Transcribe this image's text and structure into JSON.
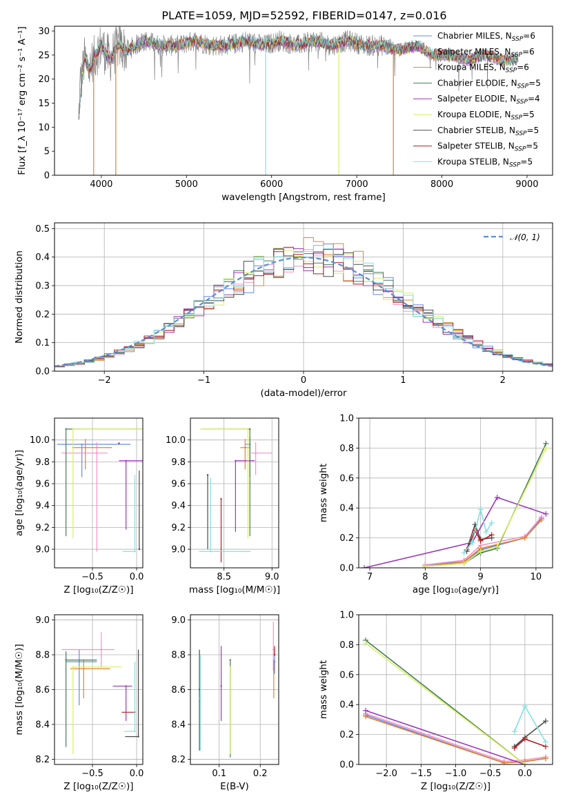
{
  "figure": {
    "title": "PLATE=1059, MJD=52592, FIBERID=0147, z=0.016"
  },
  "series": [
    {
      "name": "Chabrier MILES",
      "nssp": "6",
      "color": "#6488ea"
    },
    {
      "name": "Salpeter MILES",
      "nssp": "6",
      "color": "#f58fc8"
    },
    {
      "name": "Kroupa MILES",
      "nssp": "6",
      "color": "#e0822a"
    },
    {
      "name": "Chabrier ELODIE",
      "nssp": "5",
      "color": "#457a55"
    },
    {
      "name": "Salpeter ELODIE",
      "nssp": "4",
      "color": "#9c34b8"
    },
    {
      "name": "Kroupa ELODIE",
      "nssp": "5",
      "color": "#d6f05a"
    },
    {
      "name": "Chabrier STELIB",
      "nssp": "5",
      "color": "#4a4a4a"
    },
    {
      "name": "Salpeter STELIB",
      "nssp": "5",
      "color": "#b01f24"
    },
    {
      "name": "Kroupa STELIB",
      "nssp": "5",
      "color": "#82e0e0"
    }
  ],
  "chart_data": [
    {
      "id": "spectrum",
      "type": "line",
      "xlabel": "wavelength [Angstrom, rest frame]",
      "ylabel_tex": "Flux [f_λ 10⁻¹⁷ erg cm⁻² s⁻¹ A⁻¹]",
      "xlim": [
        3450,
        9300
      ],
      "ylim": [
        0,
        31
      ],
      "xticks": [
        4000,
        5000,
        6000,
        7000,
        8000,
        9000
      ],
      "yticks": [
        0,
        5,
        10,
        15,
        20,
        25,
        30
      ],
      "data_color": "#808080",
      "data_sample": {
        "x": [
          3730,
          3800,
          3870,
          3930,
          4000,
          4100,
          4200,
          4300,
          4400,
          4500,
          4700,
          4900,
          5100,
          5300,
          5500,
          5700,
          5900,
          6100,
          6300,
          6500,
          6700,
          6900,
          7100,
          7300,
          7500,
          7700,
          7900,
          8100,
          8300,
          8500,
          8700,
          8900
        ],
        "y": [
          15,
          24,
          22,
          25,
          27,
          24,
          27,
          26,
          27,
          28,
          27,
          27,
          28,
          27,
          27,
          28,
          27,
          28,
          27,
          28,
          27,
          28,
          27,
          27,
          26,
          27,
          25,
          25,
          24,
          25,
          24,
          24
        ]
      },
      "model_dips": [
        {
          "series": "Kroupa MILES",
          "x": 3910
        },
        {
          "series": "Kroupa MILES",
          "x": 4170
        },
        {
          "series": "Kroupa STELIB",
          "x": 5930
        },
        {
          "series": "Kroupa ELODIE",
          "x": 6790
        },
        {
          "series": "Kroupa MILES",
          "x": 7430
        }
      ],
      "legend": "top-right"
    },
    {
      "id": "residuals",
      "type": "step-histogram",
      "xlabel": "(data-model)/error",
      "ylabel": "Normed distribution",
      "xlim": [
        -2.5,
        2.5
      ],
      "ylim": [
        0,
        0.52
      ],
      "xticks": [
        -2,
        -1,
        0,
        1,
        2
      ],
      "yticks": [
        0.0,
        0.1,
        0.2,
        0.3,
        0.4,
        0.5
      ],
      "normal_label": "𝒩(0, 1)",
      "normal_color": "#5b8ed6",
      "bin_width": 0.1,
      "legend": "top-right"
    },
    {
      "id": "age-vs-Z",
      "type": "errorbar",
      "xlabel": "Z [log₁₀(Z/Z☉)]",
      "ylabel": "age [log₁₀(age/yr)]",
      "xlim": [
        -0.93,
        0.07
      ],
      "ylim": [
        8.83,
        10.2
      ],
      "xticks": [
        -0.5,
        0.0
      ],
      "yticks": [
        9.0,
        9.2,
        9.4,
        9.6,
        9.8,
        10.0
      ],
      "points": [
        {
          "series": "Chabrier MILES",
          "x": -0.62,
          "xerr": [
            0.28,
            0.55
          ],
          "y": 9.96,
          "yerr": [
            0.3,
            0.0
          ]
        },
        {
          "series": "Salpeter MILES",
          "x": -0.45,
          "xerr": [
            0.4,
            0.12
          ],
          "y": 9.88,
          "yerr": [
            0.9,
            0.1
          ]
        },
        {
          "series": "Kroupa MILES",
          "x": -0.58,
          "xerr": [
            0.15,
            0.3
          ],
          "y": 9.93,
          "yerr": [
            0.2,
            0.08
          ]
        },
        {
          "series": "Chabrier ELODIE",
          "x": -0.8,
          "xerr": [
            0.0,
            0.98
          ],
          "y": 10.1,
          "yerr": [
            0.98,
            0.0
          ]
        },
        {
          "series": "Salpeter ELODIE",
          "x": -0.12,
          "xerr": [
            0.08,
            0.2
          ],
          "y": 9.81,
          "yerr": [
            0.63,
            0.0
          ]
        },
        {
          "series": "Kroupa ELODIE",
          "x": -0.72,
          "xerr": [
            0.0,
            0.9
          ],
          "y": 10.1,
          "yerr": [
            1.0,
            0.0
          ]
        },
        {
          "series": "Chabrier STELIB",
          "x": 0.03,
          "xerr": [
            0.0,
            0.0
          ],
          "y": 9.0,
          "yerr": [
            0.0,
            0.72
          ]
        },
        {
          "series": "Salpeter STELIB",
          "x": -0.2,
          "xerr": [
            0.0,
            0.0
          ],
          "y": 9.97,
          "yerr": [
            0.0,
            0.0
          ]
        },
        {
          "series": "Kroupa STELIB",
          "x": -0.02,
          "xerr": [
            0.14,
            0.0
          ],
          "y": 8.98,
          "yerr": [
            0.0,
            0.7
          ]
        }
      ]
    },
    {
      "id": "age-vs-mass",
      "type": "errorbar",
      "xlabel": "mass [log₁₀(M/M☉)]",
      "ylabel": "",
      "xlim": [
        8.15,
        9.07
      ],
      "ylim": [
        8.83,
        10.2
      ],
      "xticks": [
        8.5,
        9.0
      ],
      "yticks": [
        9.0,
        9.2,
        9.4,
        9.6,
        9.8,
        10.0
      ],
      "points": [
        {
          "series": "Chabrier MILES",
          "x": 8.77,
          "xerr": [
            0.05,
            0.0
          ],
          "y": 9.96,
          "yerr": [
            0.3,
            0.07
          ]
        },
        {
          "series": "Salpeter MILES",
          "x": 8.83,
          "xerr": [
            0.05,
            0.17
          ],
          "y": 9.88,
          "yerr": [
            0.2,
            0.1
          ]
        },
        {
          "series": "Kroupa MILES",
          "x": 8.72,
          "xerr": [
            0.05,
            0.05
          ],
          "y": 9.93,
          "yerr": [
            0.2,
            0.08
          ]
        },
        {
          "series": "Chabrier ELODIE",
          "x": 8.77,
          "xerr": [
            0.5,
            0.0
          ],
          "y": 10.1,
          "yerr": [
            0.98,
            0.0
          ]
        },
        {
          "series": "Salpeter ELODIE",
          "x": 8.62,
          "xerr": [
            0.0,
            0.2
          ],
          "y": 9.81,
          "yerr": [
            0.65,
            0.0
          ]
        },
        {
          "series": "Kroupa ELODIE",
          "x": 8.75,
          "xerr": [
            0.5,
            0.0
          ],
          "y": 10.1,
          "yerr": [
            1.0,
            0.0
          ]
        },
        {
          "series": "Chabrier STELIB",
          "x": 8.33,
          "xerr": [
            0.0,
            0.0
          ],
          "y": 9.68,
          "yerr": [
            0.68,
            0.0
          ]
        },
        {
          "series": "Salpeter STELIB",
          "x": 8.47,
          "xerr": [
            0.0,
            0.0
          ],
          "y": 9.46,
          "yerr": [
            0.58,
            0.0
          ]
        },
        {
          "series": "Kroupa STELIB",
          "x": 8.36,
          "xerr": [
            0.12,
            0.42
          ],
          "y": 8.98,
          "yerr": [
            0.0,
            0.67
          ]
        }
      ]
    },
    {
      "id": "weight-vs-age",
      "type": "line",
      "xlabel": "age [log₁₀(age/yr)]",
      "ylabel": "mass weight",
      "xlim": [
        6.8,
        10.3
      ],
      "ylim": [
        0,
        1
      ],
      "xticks": [
        7,
        8,
        9,
        10
      ],
      "yticks": [
        0.0,
        0.2,
        0.4,
        0.6,
        0.8,
        1.0
      ],
      "series": [
        {
          "series": "Chabrier MILES",
          "x": [
            8.0,
            8.7,
            9.0,
            9.8,
            10.1
          ],
          "y": [
            0.02,
            0.04,
            0.12,
            0.2,
            0.33
          ]
        },
        {
          "series": "Salpeter MILES",
          "x": [
            8.0,
            8.7,
            9.0,
            9.8,
            10.1
          ],
          "y": [
            0.02,
            0.05,
            0.15,
            0.21,
            0.34
          ]
        },
        {
          "series": "Kroupa MILES",
          "x": [
            8.0,
            8.7,
            9.0,
            9.8,
            10.1
          ],
          "y": [
            0.01,
            0.04,
            0.13,
            0.2,
            0.32
          ]
        },
        {
          "series": "Chabrier ELODIE",
          "x": [
            8.0,
            8.7,
            9.0,
            9.3,
            10.18
          ],
          "y": [
            0.01,
            0.03,
            0.1,
            0.13,
            0.83
          ]
        },
        {
          "series": "Salpeter ELODIE",
          "x": [
            6.9,
            8.85,
            9.3,
            10.18
          ],
          "y": [
            0.0,
            0.17,
            0.47,
            0.36
          ]
        },
        {
          "series": "Kroupa ELODIE",
          "x": [
            8.0,
            8.7,
            9.0,
            9.3,
            10.18
          ],
          "y": [
            0.01,
            0.03,
            0.11,
            0.14,
            0.8
          ]
        },
        {
          "series": "Chabrier STELIB",
          "x": [
            8.75,
            8.9,
            9.0,
            9.2
          ],
          "y": [
            0.12,
            0.29,
            0.19,
            0.2
          ]
        },
        {
          "series": "Salpeter STELIB",
          "x": [
            8.75,
            8.9,
            9.0,
            9.2
          ],
          "y": [
            0.11,
            0.25,
            0.18,
            0.22
          ]
        },
        {
          "series": "Kroupa STELIB",
          "x": [
            8.7,
            8.85,
            9.0,
            9.1,
            9.2
          ],
          "y": [
            0.1,
            0.17,
            0.39,
            0.24,
            0.3
          ]
        }
      ]
    },
    {
      "id": "mass-vs-Z",
      "type": "errorbar",
      "xlabel": "Z [log₁₀(Z/Z☉)]",
      "ylabel": "mass [log₁₀(M/M☉)]",
      "xlim": [
        -0.93,
        0.07
      ],
      "ylim": [
        8.17,
        9.03
      ],
      "xticks": [
        -0.5,
        0.0
      ],
      "yticks": [
        8.2,
        8.4,
        8.6,
        8.8,
        9.0
      ],
      "points": [
        {
          "series": "Chabrier MILES",
          "x": -0.65,
          "xerr": [
            0.15,
            0.2
          ],
          "y": 8.76,
          "yerr": [
            0.25,
            0.07
          ]
        },
        {
          "series": "Salpeter MILES",
          "x": -0.4,
          "xerr": [
            0.45,
            0.15
          ],
          "y": 8.83,
          "yerr": [
            0.1,
            0.1
          ]
        },
        {
          "series": "Kroupa MILES",
          "x": -0.6,
          "xerr": [
            0.15,
            0.3
          ],
          "y": 8.72,
          "yerr": [
            0.17,
            0.05
          ]
        },
        {
          "series": "Chabrier ELODIE",
          "x": -0.8,
          "xerr": [
            0.0,
            0.35
          ],
          "y": 8.77,
          "yerr": [
            0.5,
            0.05
          ]
        },
        {
          "series": "Salpeter ELODIE",
          "x": -0.12,
          "xerr": [
            0.15,
            0.07
          ],
          "y": 8.62,
          "yerr": [
            0.2,
            0.0
          ]
        },
        {
          "series": "Kroupa ELODIE",
          "x": -0.72,
          "xerr": [
            0.0,
            0.55
          ],
          "y": 8.73,
          "yerr": [
            0.5,
            0.0
          ]
        },
        {
          "series": "Chabrier STELIB",
          "x": 0.02,
          "xerr": [
            0.15,
            0.0
          ],
          "y": 8.33,
          "yerr": [
            0.0,
            0.5
          ]
        },
        {
          "series": "Salpeter STELIB",
          "x": -0.02,
          "xerr": [
            0.15,
            0.0
          ],
          "y": 8.47,
          "yerr": [
            0.0,
            0.0
          ]
        },
        {
          "series": "Kroupa STELIB",
          "x": -0.02,
          "xerr": [
            0.12,
            0.0
          ],
          "y": 8.36,
          "yerr": [
            0.0,
            0.4
          ]
        }
      ]
    },
    {
      "id": "mass-vs-EBV",
      "type": "errorbar",
      "xlabel": "E(B-V)",
      "ylabel": "",
      "xlim": [
        0.03,
        0.245
      ],
      "ylim": [
        8.17,
        9.03
      ],
      "xticks": [
        0.1,
        0.2
      ],
      "yticks": [
        8.2,
        8.4,
        8.6,
        8.8,
        9.0
      ],
      "points": [
        {
          "series": "Chabrier MILES",
          "x": 0.235,
          "xerr": [
            0.0,
            0.0
          ],
          "y": 8.76,
          "yerr": [
            0.07,
            0.07
          ]
        },
        {
          "series": "Salpeter MILES",
          "x": 0.232,
          "xerr": [
            0.0,
            0.0
          ],
          "y": 8.83,
          "yerr": [
            0.12,
            0.16
          ]
        },
        {
          "series": "Kroupa MILES",
          "x": 0.233,
          "xerr": [
            0.0,
            0.0
          ],
          "y": 8.72,
          "yerr": [
            0.17,
            0.05
          ]
        },
        {
          "series": "Chabrier ELODIE",
          "x": 0.127,
          "xerr": [
            0.0,
            0.0
          ],
          "y": 8.77,
          "yerr": [
            0.56,
            0.0
          ]
        },
        {
          "series": "Salpeter ELODIE",
          "x": 0.105,
          "xerr": [
            0.0,
            0.0
          ],
          "y": 8.62,
          "yerr": [
            0.2,
            0.23
          ]
        },
        {
          "series": "Kroupa ELODIE",
          "x": 0.127,
          "xerr": [
            0.0,
            0.0
          ],
          "y": 8.73,
          "yerr": [
            0.5,
            0.0
          ]
        },
        {
          "series": "Chabrier STELIB",
          "x": 0.052,
          "xerr": [
            0.0,
            0.0
          ],
          "y": 8.6,
          "yerr": [
            0.35,
            0.23
          ]
        },
        {
          "series": "Salpeter STELIB",
          "x": 0.235,
          "xerr": [
            0.0,
            0.0
          ],
          "y": 8.8,
          "yerr": [
            0.0,
            0.05
          ]
        },
        {
          "series": "Kroupa STELIB",
          "x": 0.054,
          "xerr": [
            0.0,
            0.0
          ],
          "y": 8.55,
          "yerr": [
            0.3,
            0.25
          ]
        }
      ]
    },
    {
      "id": "weight-vs-Z",
      "type": "line",
      "xlabel": "Z [log₁₀(Z/Z☉)]",
      "ylabel": "mass weight",
      "xlim": [
        -2.4,
        0.4
      ],
      "ylim": [
        0,
        1
      ],
      "xticks": [
        -2.0,
        -1.5,
        -1.0,
        -0.5,
        0.0
      ],
      "yticks": [
        0.0,
        0.2,
        0.4,
        0.6,
        0.8,
        1.0
      ],
      "series": [
        {
          "series": "Chabrier MILES",
          "x": [
            -2.3,
            -0.3,
            0.0,
            0.3
          ],
          "y": [
            0.33,
            0.01,
            0.02,
            0.04
          ]
        },
        {
          "series": "Salpeter MILES",
          "x": [
            -2.3,
            -0.3,
            0.0,
            0.3
          ],
          "y": [
            0.34,
            0.02,
            0.03,
            0.05
          ]
        },
        {
          "series": "Kroupa MILES",
          "x": [
            -2.3,
            -0.3,
            0.0,
            0.3
          ],
          "y": [
            0.32,
            0.01,
            0.02,
            0.04
          ]
        },
        {
          "series": "Chabrier ELODIE",
          "x": [
            -2.3,
            0.0
          ],
          "y": [
            0.83,
            0.0
          ]
        },
        {
          "series": "Salpeter ELODIE",
          "x": [
            -2.3,
            0.0
          ],
          "y": [
            0.36,
            0.0
          ]
        },
        {
          "series": "Kroupa ELODIE",
          "x": [
            -2.3,
            0.0
          ],
          "y": [
            0.81,
            0.0
          ]
        },
        {
          "series": "Chabrier STELIB",
          "x": [
            -0.15,
            0.0,
            0.3
          ],
          "y": [
            0.12,
            0.18,
            0.29
          ]
        },
        {
          "series": "Salpeter STELIB",
          "x": [
            -0.15,
            0.0,
            0.3
          ],
          "y": [
            0.11,
            0.17,
            0.12
          ]
        },
        {
          "series": "Kroupa STELIB",
          "x": [
            -0.15,
            0.0,
            0.3
          ],
          "y": [
            0.22,
            0.39,
            0.15
          ]
        }
      ]
    }
  ]
}
